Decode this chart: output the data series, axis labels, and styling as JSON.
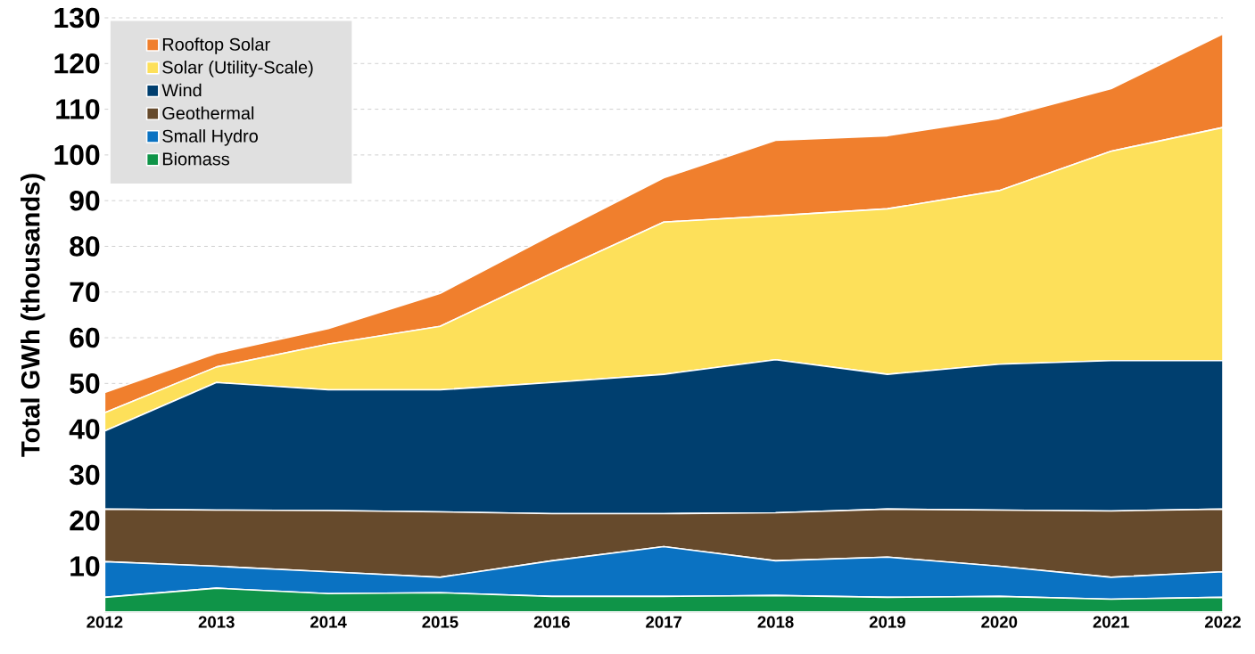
{
  "chart_data": {
    "type": "area",
    "stacked": true,
    "ylabel": "Total GWh (thousands)",
    "x": [
      2012,
      2013,
      2014,
      2015,
      2016,
      2017,
      2018,
      2019,
      2020,
      2021,
      2022
    ],
    "xlim": [
      2012,
      2022
    ],
    "xticks": [
      2012,
      2013,
      2014,
      2015,
      2016,
      2017,
      2018,
      2019,
      2020,
      2021,
      2022
    ],
    "ylim": [
      0,
      130
    ],
    "yticks": [
      10,
      20,
      30,
      40,
      50,
      60,
      70,
      80,
      90,
      100,
      110,
      120,
      130
    ],
    "grid": "y",
    "legend": "top left",
    "series": [
      {
        "name": "Biomass",
        "color": "#0f9448",
        "values": [
          3.2,
          5.2,
          4.0,
          4.2,
          3.4,
          3.4,
          3.6,
          3.2,
          3.4,
          2.8,
          3.2
        ]
      },
      {
        "name": "Small Hydro",
        "color": "#0a72c2",
        "values": [
          7.8,
          4.8,
          4.8,
          3.4,
          7.8,
          10.9,
          7.6,
          8.8,
          6.6,
          4.8,
          5.6
        ]
      },
      {
        "name": "Geothermal",
        "color": "#664a2c",
        "values": [
          11.5,
          12.3,
          13.4,
          14.3,
          10.3,
          7.2,
          10.5,
          10.5,
          12.3,
          14.5,
          13.7
        ]
      },
      {
        "name": "Wind",
        "color": "#003f6f",
        "values": [
          17.1,
          27.9,
          26.4,
          26.7,
          28.7,
          30.5,
          33.5,
          29.5,
          31.9,
          32.9,
          32.5
        ]
      },
      {
        "name": "Solar (Utility-Scale)",
        "color": "#fde05a",
        "values": [
          4.0,
          3.4,
          10.0,
          13.9,
          23.9,
          33.3,
          31.5,
          36.2,
          38.0,
          45.8,
          51.0
        ]
      },
      {
        "name": "Rooftop Solar",
        "color": "#f07f2d",
        "values": [
          4.4,
          3.0,
          3.4,
          7.2,
          8.4,
          9.7,
          16.5,
          16.0,
          15.8,
          13.7,
          20.5
        ]
      }
    ]
  }
}
